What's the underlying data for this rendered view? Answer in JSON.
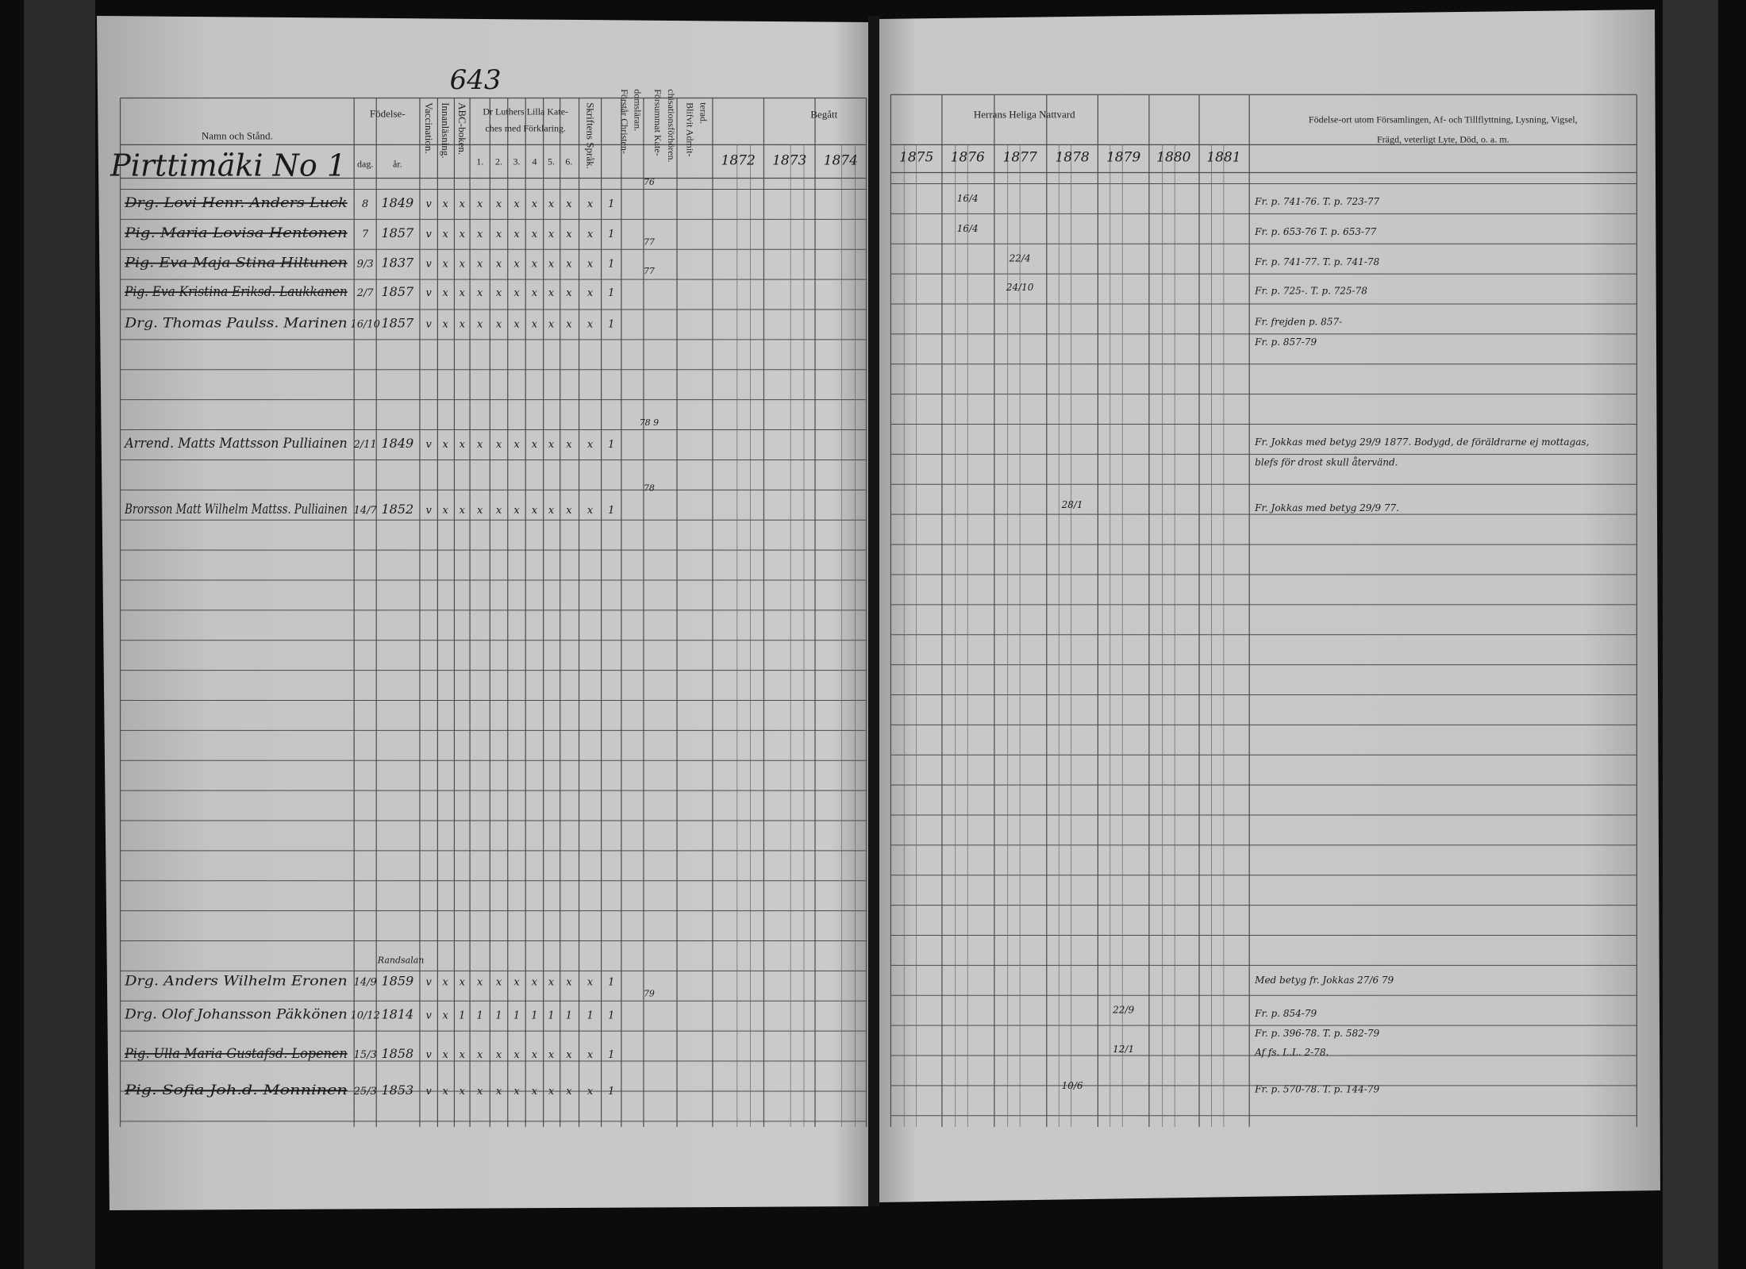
{
  "page_number": "643",
  "left_page": {
    "headers": {
      "name": "Namn och Stånd.",
      "birth": "Födelse-",
      "birth_day": "dag.",
      "birth_year": "år.",
      "vaccination": "Vaccination.",
      "reading": "Innanläsning.",
      "abc": "ABC-boken.",
      "catechism": [
        "Dr Luthers Lilla Kate-",
        "ches med Förklaring."
      ],
      "catechism_parts": [
        "1.",
        "2.",
        "3.",
        "4",
        "5.",
        "6."
      ],
      "scripture": "Skriftens Språk.",
      "doctrine": [
        "Förstår Christen-",
        "domsläran."
      ],
      "missed": [
        "Försummat Kate-",
        "chisationsförhören."
      ],
      "admitted": [
        "Blifvit Admit-",
        "terad."
      ],
      "communion": "Begått",
      "years": [
        "1872",
        "1873",
        "1874"
      ]
    },
    "village": "Pirttimäki No 1"
  },
  "right_page": {
    "headers": {
      "communion": "Herrans Heliga Nattvard",
      "years": [
        "1875",
        "1876",
        "1877",
        "1878",
        "1879",
        "1880",
        "1881"
      ],
      "remarks": [
        "Födelse-ort utom Församlingen, Af- och Tillflyttning, Lysning, Vigsel,",
        "Frägd, veterligt Lyte, Död, o. a. m."
      ]
    }
  },
  "rows": [
    {
      "name": "Drg. Lovi Henr. Anders Luck",
      "day": "8",
      "year": "1849",
      "struck": true,
      "marks": [
        "v",
        "x",
        "x",
        "x",
        "x",
        "x",
        "x",
        "x",
        "x",
        "x",
        "1"
      ],
      "missed": "76",
      "communion": {
        "1876": "16/4"
      },
      "notes": [
        "Fr. p. 741-76. T. p. 723-77"
      ]
    },
    {
      "name": "Pig. Maria Lovisa Hentonen",
      "day": "7",
      "year": "1857",
      "struck": true,
      "marks": [
        "v",
        "x",
        "x",
        "x",
        "x",
        "x",
        "x",
        "x",
        "x",
        "x",
        "1"
      ],
      "communion": {
        "1876": "16/4"
      },
      "notes": [
        "Fr. p. 653-76 T. p. 653-77"
      ]
    },
    {
      "name": "Pig. Eva Maja Stina Hiltunen",
      "day": "9/3",
      "year": "1837",
      "struck": true,
      "marks": [
        "v",
        "x",
        "x",
        "x",
        "x",
        "x",
        "x",
        "x",
        "x",
        "x",
        "1"
      ],
      "missed": "77",
      "communion": {
        "1877": "22/4"
      },
      "notes": [
        "Fr. p. 741-77. T. p. 741-78"
      ]
    },
    {
      "name": "Pig. Eva Kristina Eriksd. Laukkanen",
      "day": "2/7",
      "year": "1857",
      "struck": true,
      "marks": [
        "v",
        "x",
        "x",
        "x",
        "x",
        "x",
        "x",
        "x",
        "x",
        "x",
        "1"
      ],
      "missed": "77",
      "communion": {
        "1877": "24/10"
      },
      "notes": [
        "Fr. p. 725-. T. p. 725-78"
      ]
    },
    {
      "name": "Drg. Thomas Paulss. Marinen",
      "day": "16/10",
      "year": "1857",
      "struck": false,
      "marks": [
        "v",
        "x",
        "x",
        "x",
        "x",
        "x",
        "x",
        "x",
        "x",
        "x",
        "1"
      ],
      "notes": [
        "Fr. frejden p. 857-",
        "Fr. p. 857-79"
      ]
    },
    {
      "name": "Arrend. Matts Mattsson Pulliainen",
      "day": "2/11",
      "year": "1849",
      "struck": false,
      "marks": [
        "v",
        "x",
        "x",
        "x",
        "x",
        "x",
        "x",
        "x",
        "x",
        "x",
        "1"
      ],
      "missed": "78 9",
      "notes": [
        "Fr. Jokkas med betyg 29/9 1877. Bodygd, de föräldrarne ej mottagas,",
        "blefs för drost skull återvänd."
      ]
    },
    {
      "name": "Brorsson Matt Wilhelm Mattss. Pulliainen",
      "day": "14/7",
      "year": "1852",
      "struck": false,
      "marks": [
        "v",
        "x",
        "x",
        "x",
        "x",
        "x",
        "x",
        "x",
        "x",
        "x",
        "1"
      ],
      "missed": "78",
      "communion": {
        "1878": "28/1"
      },
      "notes": [
        "Fr. Jokkas med betyg 29/9 77."
      ]
    },
    {
      "name": "Drg. Anders Wilhelm Eronen",
      "day": "14/9",
      "year": "1859",
      "year_note": "Randsalan",
      "struck": false,
      "marks": [
        "v",
        "x",
        "x",
        "x",
        "x",
        "x",
        "x",
        "x",
        "x",
        "x",
        "1"
      ],
      "notes": [
        "Med betyg fr. Jokkas 27/6 79"
      ]
    },
    {
      "name": "Drg. Olof Johansson Päkkönen",
      "day": "10/12",
      "year": "1814",
      "struck": false,
      "marks": [
        "v",
        "x",
        "1",
        "1",
        "1",
        "1",
        "1",
        "1",
        "1",
        "1",
        "1"
      ],
      "missed": "79",
      "communion": {
        "1879": "22/9"
      },
      "notes": [
        "Fr. p. 854-79",
        "Fr. p. 396-78. T. p. 582-79"
      ]
    },
    {
      "name": "Pig. Ulla Maria Gustafsd. Lopenen",
      "day": "15/3",
      "year": "1858",
      "struck": true,
      "marks": [
        "v",
        "x",
        "x",
        "x",
        "x",
        "x",
        "x",
        "x",
        "x",
        "x",
        "1"
      ],
      "communion": {
        "1879": "12/1"
      },
      "notes": [
        "Af fs. L.L. 2-78."
      ]
    },
    {
      "name": "Pig. Sofia Joh.d. Monninen",
      "day": "25/3",
      "year": "1853",
      "struck": true,
      "marks": [
        "v",
        "x",
        "x",
        "x",
        "x",
        "x",
        "x",
        "x",
        "x",
        "x",
        "1"
      ],
      "communion": {
        "1878": "10/6"
      },
      "notes": [
        "Fr. p. 570-78. T. p. 144-79"
      ]
    }
  ]
}
